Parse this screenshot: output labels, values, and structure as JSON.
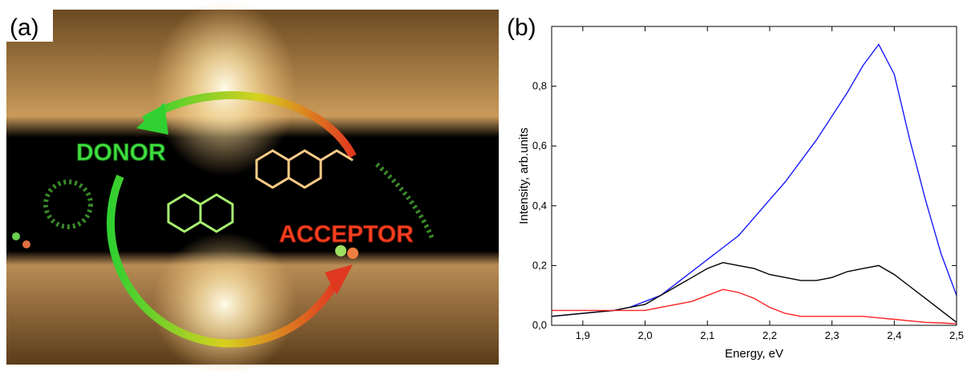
{
  "panel_a": {
    "label": "(a)",
    "donor": "DONOR",
    "acceptor": "ACCEPTOR"
  },
  "chart_data": {
    "type": "line",
    "panel_label": "(b)",
    "x_label": "Energy, eV",
    "y_label": "Intensity, arb.units",
    "x": [
      1.85,
      1.875,
      1.9,
      1.925,
      1.95,
      1.975,
      2.0,
      2.025,
      2.05,
      2.075,
      2.1,
      2.125,
      2.15,
      2.175,
      2.2,
      2.225,
      2.25,
      2.275,
      2.3,
      2.325,
      2.35,
      2.375,
      2.4,
      2.425,
      2.45,
      2.475,
      2.5
    ],
    "series": [
      {
        "color": "#1a1aff",
        "values": [
          0.03,
          0.035,
          0.04,
          0.045,
          0.05,
          0.06,
          0.08,
          0.1,
          0.14,
          0.18,
          0.22,
          0.26,
          0.3,
          0.36,
          0.42,
          0.48,
          0.55,
          0.62,
          0.7,
          0.78,
          0.87,
          0.94,
          0.84,
          0.62,
          0.42,
          0.24,
          0.1
        ]
      },
      {
        "color": "#000000",
        "values": [
          0.03,
          0.035,
          0.04,
          0.045,
          0.05,
          0.06,
          0.07,
          0.1,
          0.13,
          0.16,
          0.19,
          0.21,
          0.2,
          0.19,
          0.17,
          0.16,
          0.15,
          0.15,
          0.16,
          0.18,
          0.19,
          0.2,
          0.17,
          0.13,
          0.09,
          0.05,
          0.01
        ]
      },
      {
        "color": "#ff2020",
        "values": [
          0.05,
          0.05,
          0.05,
          0.05,
          0.05,
          0.05,
          0.05,
          0.06,
          0.07,
          0.08,
          0.1,
          0.12,
          0.11,
          0.09,
          0.06,
          0.04,
          0.03,
          0.03,
          0.03,
          0.03,
          0.03,
          0.025,
          0.02,
          0.015,
          0.01,
          0.008,
          0.005
        ]
      }
    ],
    "xlim": [
      1.85,
      2.5
    ],
    "xticks": [
      {
        "value": 1.9,
        "label": "1,9"
      },
      {
        "value": 2.0,
        "label": "2,0"
      },
      {
        "value": 2.1,
        "label": "2,1"
      },
      {
        "value": 2.2,
        "label": "2,2"
      },
      {
        "value": 2.3,
        "label": "2,3"
      },
      {
        "value": 2.4,
        "label": "2,4"
      },
      {
        "value": 2.5,
        "label": "2,5"
      }
    ],
    "ylim": [
      0,
      1.0
    ],
    "yticks": [
      {
        "value": 0,
        "label": "0,0"
      },
      {
        "value": 0.2,
        "label": "0,2"
      },
      {
        "value": 0.4,
        "label": "0,4"
      },
      {
        "value": 0.6,
        "label": "0,6"
      },
      {
        "value": 0.8,
        "label": "0,8"
      }
    ]
  }
}
